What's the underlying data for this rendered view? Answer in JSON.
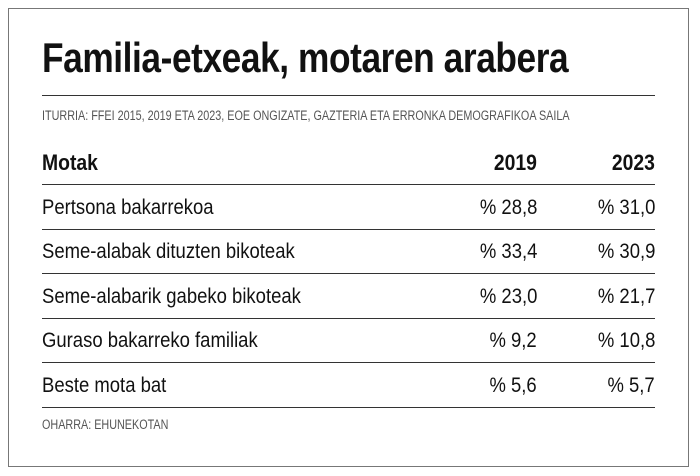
{
  "title": "Familia-etxeak, motaren arabera",
  "source": "ITURRIA: FFEI 2015, 2019 ETA 2023, EOE ONGIZATE, GAZTERIA ETA ERRONKA DEMOGRAFIKOA SAILA",
  "note": "OHARRA: EHUNEKOTAN",
  "chart_data": {
    "type": "table",
    "title": "Familia-etxeak, motaren arabera",
    "columns": [
      "Motak",
      "2019",
      "2023"
    ],
    "rows": [
      [
        "Pertsona bakarrekoa",
        "% 28,8",
        "% 31,0"
      ],
      [
        "Seme-alabak dituzten bikoteak",
        "% 33,4",
        "% 30,9"
      ],
      [
        "Seme-alabarik gabeko bikoteak",
        "% 23,0",
        "% 21,7"
      ],
      [
        "Guraso bakarreko familiak",
        "% 9,2",
        "% 10,8"
      ],
      [
        "Beste mota bat",
        "% 5,6",
        "% 5,7"
      ]
    ]
  }
}
